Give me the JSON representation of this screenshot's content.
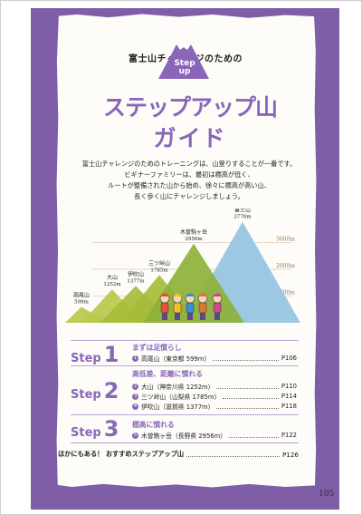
{
  "header": {
    "subtitle": "富士山チャレンジのための",
    "badge_line1": "Step",
    "badge_line2": "up",
    "title_line1": "ステップアップ山",
    "title_line2": "ガイド"
  },
  "intro": {
    "line1": "富士山チャレンジのためのトレーニングは、山登りすることが一番です。",
    "line2": "ビギナーファミリーは、最初は標高が低く、",
    "line3": "ルートが整備された山から始め、徐々に標高が高い山、",
    "line4": "長く歩く山にチャレンジしましょう。"
  },
  "chart_data": {
    "type": "area",
    "title": "",
    "ylabel": "",
    "ylim": [
      0,
      4000
    ],
    "reference_lines": [
      {
        "value": 1000,
        "label": "1000m"
      },
      {
        "value": 2000,
        "label": "2000m"
      },
      {
        "value": 3000,
        "label": "3000m"
      }
    ],
    "peaks": [
      {
        "name": "高尾山",
        "elevation": 599,
        "label": "599m",
        "color": "#b9c94a"
      },
      {
        "name": "大山",
        "elevation": 1252,
        "label": "1252m",
        "color": "#b9c94a"
      },
      {
        "name": "伊吹山",
        "elevation": 1377,
        "label": "1377m",
        "color": "#a6bd3a"
      },
      {
        "name": "三ツ峠山",
        "elevation": 1785,
        "label": "1785m",
        "color": "#a6bd3a"
      },
      {
        "name": "木曽駒ヶ岳",
        "elevation": 2956,
        "label": "2956m",
        "color": "#8fb13a"
      },
      {
        "name": "富士山",
        "elevation": 3776,
        "label": "3776m",
        "color": "#9cc8e4"
      }
    ]
  },
  "steps": [
    {
      "word": "Step",
      "num": "1",
      "heading": "まずは足慣らし",
      "entries": [
        {
          "marker": "1",
          "name": "高尾山（東京都 599m）",
          "page": "P106"
        }
      ]
    },
    {
      "word": "Step",
      "num": "2",
      "heading": "高低差、距離に慣れる",
      "entries": [
        {
          "marker": "2",
          "name": "大山（神奈川県 1252m）",
          "page": "P110"
        },
        {
          "marker": "3",
          "name": "三ツ峠山（山梨県 1785m）",
          "page": "P114"
        },
        {
          "marker": "4",
          "name": "伊吹山（滋賀県 1377m）",
          "page": "P118"
        }
      ]
    },
    {
      "word": "Step",
      "num": "3",
      "heading": "標高に慣れる",
      "entries": [
        {
          "marker": "5",
          "name": "木曽駒ヶ岳（長野県 2956m）",
          "page": "P122"
        }
      ]
    }
  ],
  "extra": {
    "label": "ほかにもある！ おすすめステップアップ山",
    "page": "P126"
  },
  "page_number": "105",
  "colors": {
    "purple": "#7e5ea6",
    "accent": "#8a66b8",
    "paper": "#fdfcf8"
  }
}
